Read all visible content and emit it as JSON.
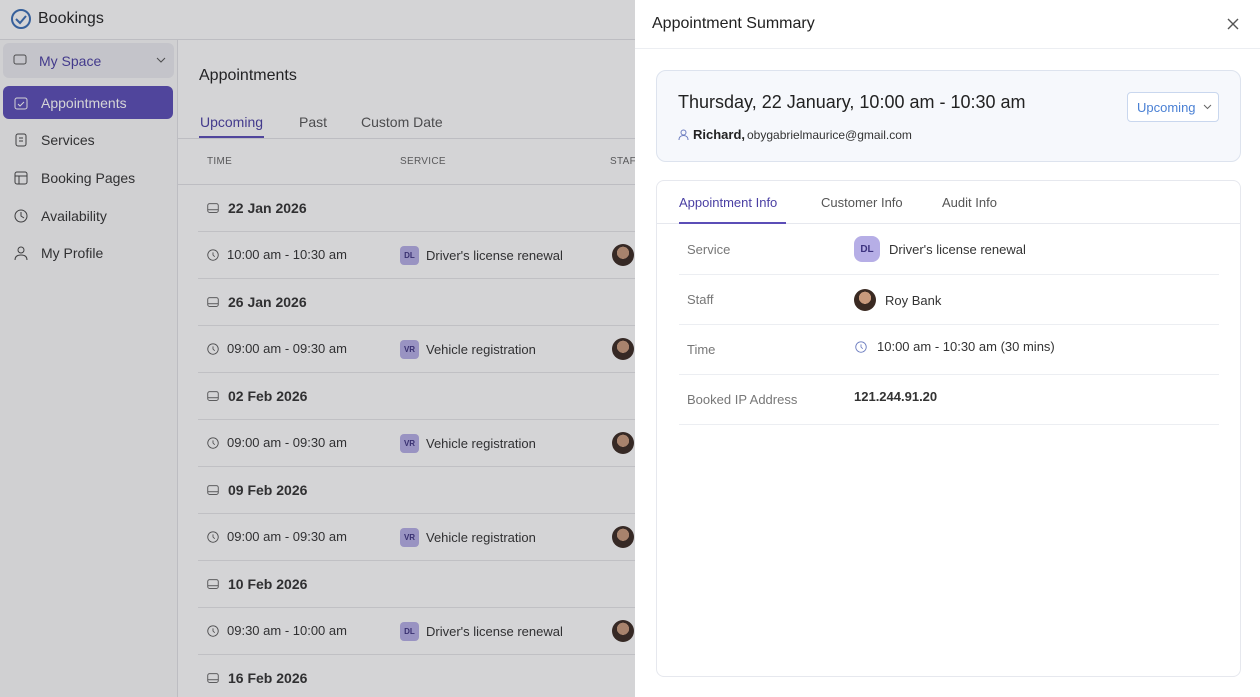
{
  "app": {
    "name": "Bookings"
  },
  "sidebar": {
    "space": "My Space",
    "items": [
      "Appointments",
      "Services",
      "Booking Pages",
      "Availability",
      "My Profile"
    ]
  },
  "main": {
    "title": "Appointments",
    "tabs": [
      "Upcoming",
      "Past",
      "Custom Date"
    ],
    "columns": [
      "TIME",
      "SERVICE",
      "STAFF"
    ],
    "groups": [
      {
        "date": "22 Jan 2026",
        "rows": [
          {
            "time": "10:00 am - 10:30 am",
            "code": "DL",
            "service": "Driver's license renewal"
          }
        ]
      },
      {
        "date": "26 Jan 2026",
        "rows": [
          {
            "time": "09:00 am - 09:30 am",
            "code": "VR",
            "service": "Vehicle registration"
          }
        ]
      },
      {
        "date": "02 Feb 2026",
        "rows": [
          {
            "time": "09:00 am - 09:30 am",
            "code": "VR",
            "service": "Vehicle registration"
          }
        ]
      },
      {
        "date": "09 Feb 2026",
        "rows": [
          {
            "time": "09:00 am - 09:30 am",
            "code": "VR",
            "service": "Vehicle registration"
          }
        ]
      },
      {
        "date": "10 Feb 2026",
        "rows": [
          {
            "time": "09:30 am - 10:00 am",
            "code": "DL",
            "service": "Driver's license renewal"
          }
        ]
      },
      {
        "date": "16 Feb 2026",
        "rows": []
      }
    ]
  },
  "panel": {
    "title": "Appointment Summary",
    "summary": {
      "datetime": "Thursday, 22 January, 10:00 am - 10:30 am",
      "customer": "Richard,",
      "email": "obygabrielmaurice@gmail.com",
      "status": "Upcoming"
    },
    "tabs": [
      "Appointment Info",
      "Customer Info",
      "Audit Info"
    ],
    "details": [
      {
        "label": "Service",
        "code": "DL",
        "value": "Driver's license renewal"
      },
      {
        "label": "Staff",
        "value": "Roy Bank"
      },
      {
        "label": "Time",
        "value": "10:00 am - 10:30 am (30 mins)"
      },
      {
        "label": "Booked IP Address",
        "value": "121.244.91.20"
      }
    ]
  }
}
